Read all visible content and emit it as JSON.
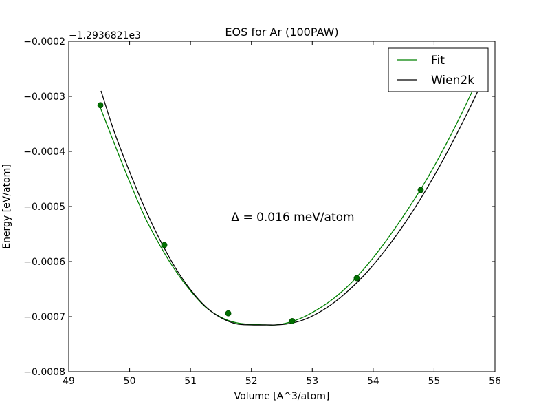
{
  "chart_data": {
    "type": "line",
    "title": "EOS for Ar (100PAW)",
    "xlabel": "Volume [A^3/atom]",
    "ylabel": "Energy [eV/atom]",
    "offset_label": "−1.2936821e3",
    "annotation": "Δ = 0.016 meV/atom",
    "xlim": [
      49,
      56
    ],
    "ylim": [
      -0.0008,
      -0.0002
    ],
    "x_ticks": [
      49,
      50,
      51,
      52,
      53,
      54,
      55,
      56
    ],
    "x_tick_labels": [
      "49",
      "50",
      "51",
      "52",
      "53",
      "54",
      "55",
      "56"
    ],
    "y_ticks": [
      -0.0008,
      -0.0007,
      -0.0006,
      -0.0005,
      -0.0004,
      -0.0003,
      -0.0002
    ],
    "y_tick_labels": [
      "−0.0008",
      "−0.0007",
      "−0.0006",
      "−0.0005",
      "−0.0004",
      "−0.0003",
      "−0.0002"
    ],
    "legend_position": "top-right",
    "grid": false,
    "series": [
      {
        "name": "Fit",
        "kind": "line",
        "color": "#008000",
        "x": [
          49.5,
          49.75,
          50.0,
          50.25,
          50.5,
          50.75,
          51.0,
          51.25,
          51.5,
          51.75,
          52.0,
          52.25,
          52.4,
          52.6,
          52.85,
          53.1,
          53.35,
          53.6,
          53.85,
          54.1,
          54.35,
          54.6,
          54.85,
          55.1,
          55.35,
          55.6,
          55.75
        ],
        "y": [
          -0.000315,
          -0.000386,
          -0.000455,
          -0.000519,
          -0.000571,
          -0.000616,
          -0.000653,
          -0.000683,
          -0.000701,
          -0.000711,
          -0.000714,
          -0.000715,
          -0.000715,
          -0.000711,
          -0.000701,
          -0.000686,
          -0.000667,
          -0.000643,
          -0.000613,
          -0.000579,
          -0.000541,
          -0.0005,
          -0.000456,
          -0.000407,
          -0.000354,
          -0.000297,
          -0.00026
        ]
      },
      {
        "name": "Wien2k",
        "kind": "line",
        "color": "#000000",
        "x": [
          49.53,
          49.75,
          50.0,
          50.25,
          50.5,
          50.75,
          51.0,
          51.25,
          51.5,
          51.75,
          52.0,
          52.25,
          52.4,
          52.6,
          52.85,
          53.1,
          53.35,
          53.6,
          53.85,
          54.1,
          54.35,
          54.6,
          54.85,
          55.1,
          55.35,
          55.6,
          55.75
        ],
        "y": [
          -0.00029,
          -0.000365,
          -0.000437,
          -0.000503,
          -0.000561,
          -0.000611,
          -0.000651,
          -0.000682,
          -0.000702,
          -0.000713,
          -0.000715,
          -0.000715,
          -0.000715,
          -0.000713,
          -0.000706,
          -0.000693,
          -0.000675,
          -0.000652,
          -0.000625,
          -0.000593,
          -0.000557,
          -0.000517,
          -0.000473,
          -0.000425,
          -0.000373,
          -0.000318,
          -0.000283
        ]
      },
      {
        "name": "data-points",
        "kind": "points",
        "color": "#007000",
        "x": [
          49.52,
          50.57,
          51.62,
          52.67,
          53.73,
          54.78
        ],
        "y": [
          -0.000316,
          -0.00057,
          -0.000694,
          -0.000708,
          -0.00063,
          -0.00047
        ]
      }
    ]
  }
}
